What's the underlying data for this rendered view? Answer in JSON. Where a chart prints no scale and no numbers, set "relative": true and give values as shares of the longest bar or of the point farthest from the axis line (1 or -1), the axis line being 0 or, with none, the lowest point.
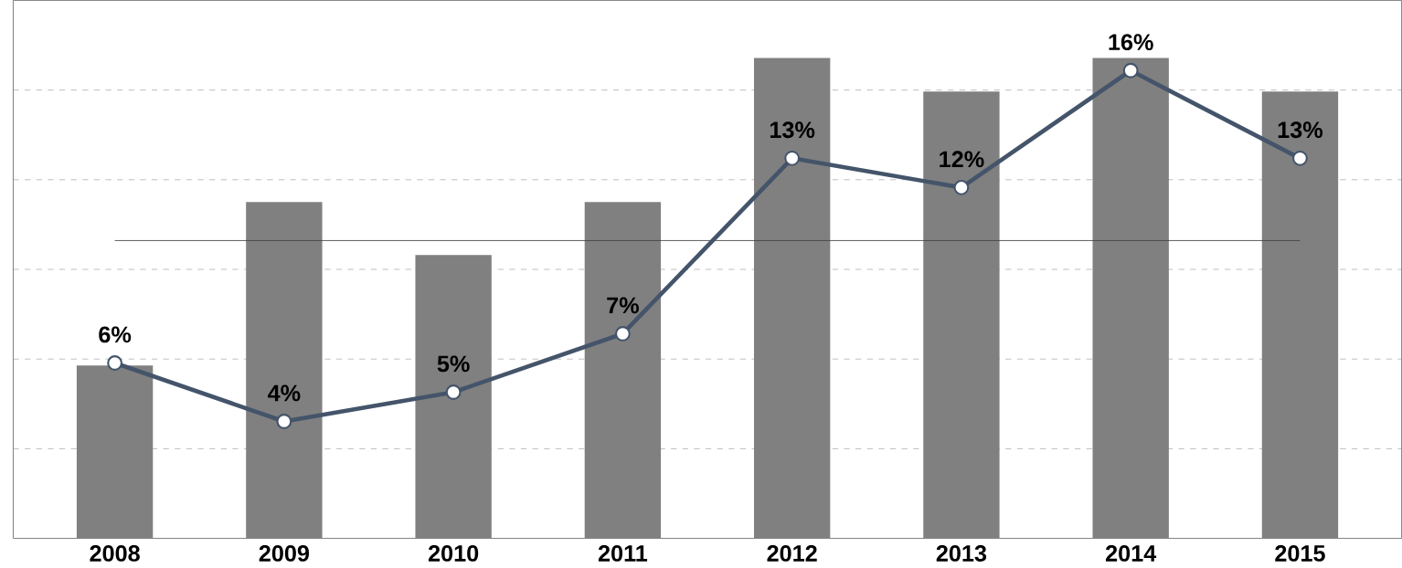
{
  "chart_data": [
    {
      "type": "bar",
      "relative": true,
      "grid": "y",
      "categories": [
        "2008",
        "2009",
        "2010",
        "2011",
        "2012",
        "2013",
        "2014",
        "2015"
      ],
      "color": "#808080",
      "values": [
        0.36,
        0.7,
        0.59,
        0.7,
        1,
        0.93,
        1,
        0.93
      ],
      "ref_lines": [
        {
          "axis": "y",
          "value": 0.62,
          "color": "#404040"
        }
      ]
    },
    {
      "type": "line",
      "tick_labels": false,
      "categories": [
        "2008",
        "2009",
        "2010",
        "2011",
        "2012",
        "2013",
        "2014",
        "2015"
      ],
      "color": "#44546a",
      "marker": "circle",
      "value_labels": [
        "6%",
        "4%",
        "5%",
        "7%",
        "13%",
        "12%",
        "16%",
        "13%"
      ],
      "values": [
        6,
        4,
        5,
        7,
        13,
        12,
        16,
        13
      ]
    }
  ]
}
